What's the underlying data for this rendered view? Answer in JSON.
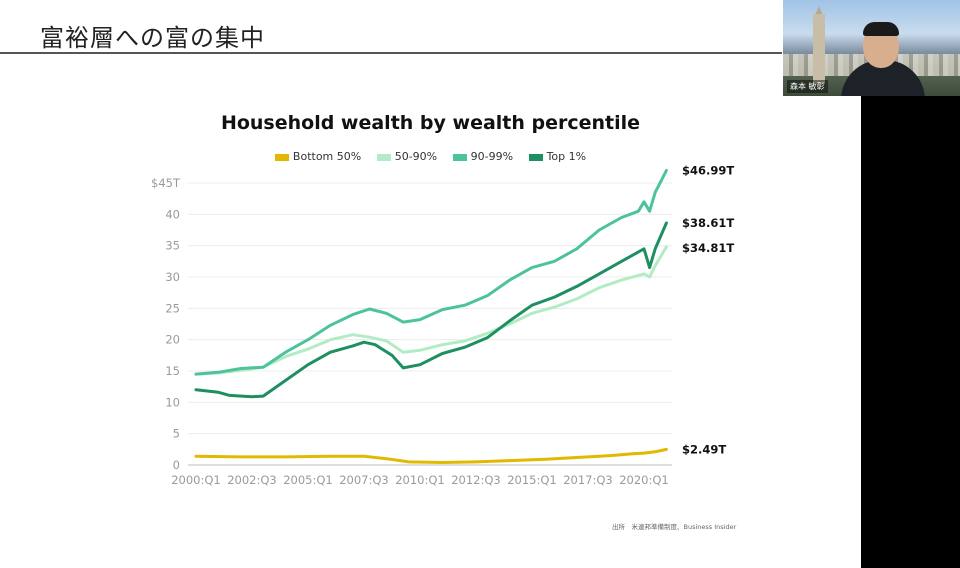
{
  "slide": {
    "title": "富裕層への富の集中"
  },
  "webcam": {
    "label": "森本 敏彰"
  },
  "source": {
    "label": "出所",
    "text": "米連邦準備制度、Business Insider"
  },
  "chart_data": {
    "type": "line",
    "title": "Household wealth by wealth percentile",
    "xlabel": "",
    "ylabel": "",
    "x_ticks": [
      "2000:Q1",
      "2002:Q3",
      "2005:Q1",
      "2007:Q3",
      "2010:Q1",
      "2012:Q3",
      "2015:Q1",
      "2017:Q3",
      "2020:Q1"
    ],
    "y_ticks": [
      "$45T",
      "40",
      "35",
      "30",
      "25",
      "20",
      "15",
      "10",
      "5",
      "0"
    ],
    "ylim": [
      0,
      45
    ],
    "xlim": [
      2000.0,
      2021.25
    ],
    "grid": true,
    "legend_position": "top",
    "series": [
      {
        "name": "Bottom 50%",
        "color": "#e3b800",
        "end_label": "$2.49T",
        "points": [
          [
            2000.0,
            1.4
          ],
          [
            2002.0,
            1.3
          ],
          [
            2004.0,
            1.3
          ],
          [
            2006.0,
            1.4
          ],
          [
            2007.5,
            1.4
          ],
          [
            2008.5,
            1.0
          ],
          [
            2009.5,
            0.5
          ],
          [
            2011.0,
            0.4
          ],
          [
            2012.5,
            0.5
          ],
          [
            2014.0,
            0.7
          ],
          [
            2015.5,
            0.9
          ],
          [
            2017.0,
            1.2
          ],
          [
            2018.5,
            1.5
          ],
          [
            2019.5,
            1.8
          ],
          [
            2020.0,
            1.9
          ],
          [
            2020.5,
            2.1
          ],
          [
            2021.0,
            2.49
          ]
        ]
      },
      {
        "name": "50-90%",
        "color": "#b2ecc4",
        "end_label": "$34.81T",
        "points": [
          [
            2000.0,
            14.5
          ],
          [
            2001.0,
            14.7
          ],
          [
            2002.0,
            15.1
          ],
          [
            2003.0,
            15.6
          ],
          [
            2004.0,
            17.3
          ],
          [
            2005.0,
            18.5
          ],
          [
            2006.0,
            20.0
          ],
          [
            2007.0,
            20.8
          ],
          [
            2007.75,
            20.4
          ],
          [
            2008.5,
            19.8
          ],
          [
            2009.25,
            18.0
          ],
          [
            2010.0,
            18.3
          ],
          [
            2011.0,
            19.2
          ],
          [
            2012.0,
            19.8
          ],
          [
            2013.0,
            21.0
          ],
          [
            2014.0,
            22.5
          ],
          [
            2015.0,
            24.2
          ],
          [
            2016.0,
            25.2
          ],
          [
            2017.0,
            26.5
          ],
          [
            2018.0,
            28.3
          ],
          [
            2019.0,
            29.5
          ],
          [
            2020.0,
            30.5
          ],
          [
            2020.25,
            30.0
          ],
          [
            2020.5,
            31.8
          ],
          [
            2021.0,
            34.81
          ]
        ]
      },
      {
        "name": "90-99%",
        "color": "#4cc39c",
        "end_label": "$46.99T",
        "points": [
          [
            2000.0,
            14.5
          ],
          [
            2001.0,
            14.8
          ],
          [
            2002.0,
            15.4
          ],
          [
            2003.0,
            15.6
          ],
          [
            2004.0,
            18.0
          ],
          [
            2005.0,
            20.0
          ],
          [
            2006.0,
            22.3
          ],
          [
            2007.0,
            24.0
          ],
          [
            2007.75,
            24.9
          ],
          [
            2008.5,
            24.2
          ],
          [
            2009.25,
            22.8
          ],
          [
            2010.0,
            23.2
          ],
          [
            2011.0,
            24.8
          ],
          [
            2012.0,
            25.5
          ],
          [
            2013.0,
            27.0
          ],
          [
            2014.0,
            29.5
          ],
          [
            2015.0,
            31.5
          ],
          [
            2016.0,
            32.5
          ],
          [
            2017.0,
            34.5
          ],
          [
            2018.0,
            37.5
          ],
          [
            2019.0,
            39.5
          ],
          [
            2019.75,
            40.5
          ],
          [
            2020.0,
            42.0
          ],
          [
            2020.25,
            40.5
          ],
          [
            2020.5,
            43.5
          ],
          [
            2021.0,
            46.99
          ]
        ]
      },
      {
        "name": "Top 1%",
        "color": "#1e8f60",
        "end_label": "$38.61T",
        "points": [
          [
            2000.0,
            12.0
          ],
          [
            2001.0,
            11.6
          ],
          [
            2001.5,
            11.1
          ],
          [
            2002.5,
            10.9
          ],
          [
            2003.0,
            11.0
          ],
          [
            2004.0,
            13.5
          ],
          [
            2005.0,
            16.0
          ],
          [
            2006.0,
            18.0
          ],
          [
            2007.0,
            19.0
          ],
          [
            2007.5,
            19.6
          ],
          [
            2008.0,
            19.2
          ],
          [
            2008.75,
            17.5
          ],
          [
            2009.25,
            15.5
          ],
          [
            2010.0,
            16.0
          ],
          [
            2011.0,
            17.8
          ],
          [
            2012.0,
            18.8
          ],
          [
            2013.0,
            20.3
          ],
          [
            2014.0,
            23.0
          ],
          [
            2015.0,
            25.5
          ],
          [
            2016.0,
            26.8
          ],
          [
            2017.0,
            28.5
          ],
          [
            2018.0,
            30.5
          ],
          [
            2019.0,
            32.5
          ],
          [
            2019.5,
            33.5
          ],
          [
            2020.0,
            34.5
          ],
          [
            2020.25,
            31.5
          ],
          [
            2020.5,
            34.5
          ],
          [
            2021.0,
            38.61
          ]
        ]
      }
    ]
  }
}
